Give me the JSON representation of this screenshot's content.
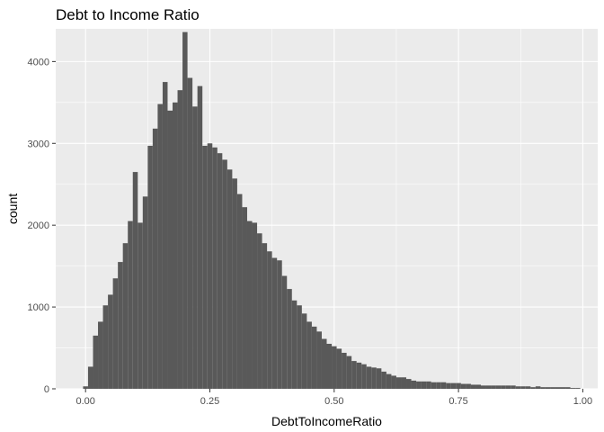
{
  "chart_data": {
    "type": "bar",
    "title": "Debt to Income Ratio",
    "xlabel": "DebtToIncomeRatio",
    "ylabel": "count",
    "xlim": [
      -0.06,
      1.03
    ],
    "ylim": [
      0,
      4400
    ],
    "x_ticks": [
      {
        "value": 0.0,
        "label": "0.00"
      },
      {
        "value": 0.25,
        "label": "0.25"
      },
      {
        "value": 0.5,
        "label": "0.50"
      },
      {
        "value": 0.75,
        "label": "0.75"
      },
      {
        "value": 1.0,
        "label": "1.00"
      }
    ],
    "y_ticks": [
      {
        "value": 0,
        "label": "0"
      },
      {
        "value": 1000,
        "label": "1000"
      },
      {
        "value": 2000,
        "label": "2000"
      },
      {
        "value": 3000,
        "label": "3000"
      },
      {
        "value": 4000,
        "label": "4000"
      }
    ],
    "x_minor_ticks": [
      -0.125,
      0.125,
      0.375,
      0.625,
      0.875
    ],
    "y_minor_ticks": [
      500,
      1500,
      2500,
      3500
    ],
    "grid": true,
    "bar_color": "#595959",
    "panel_color": "#ebebeb",
    "grid_color": "#ffffff",
    "bin_width": 0.01,
    "bin_start": -0.005,
    "values": [
      30,
      270,
      650,
      820,
      1020,
      1150,
      1350,
      1550,
      1780,
      2050,
      2650,
      2030,
      2350,
      2970,
      3180,
      3480,
      3750,
      3400,
      3500,
      3650,
      4360,
      3800,
      3450,
      3700,
      2970,
      3000,
      2950,
      2880,
      2800,
      2680,
      2570,
      2380,
      2220,
      2050,
      2030,
      1900,
      1780,
      1680,
      1600,
      1570,
      1380,
      1220,
      1080,
      1020,
      920,
      820,
      760,
      700,
      610,
      550,
      520,
      490,
      440,
      400,
      340,
      320,
      300,
      270,
      260,
      250,
      210,
      180,
      160,
      140,
      140,
      120,
      100,
      90,
      90,
      90,
      80,
      80,
      80,
      70,
      70,
      70,
      60,
      60,
      50,
      50,
      40,
      40,
      40,
      40,
      40,
      40,
      40,
      30,
      30,
      30,
      20,
      30,
      20,
      20,
      20,
      20,
      20,
      20,
      10,
      10
    ]
  }
}
